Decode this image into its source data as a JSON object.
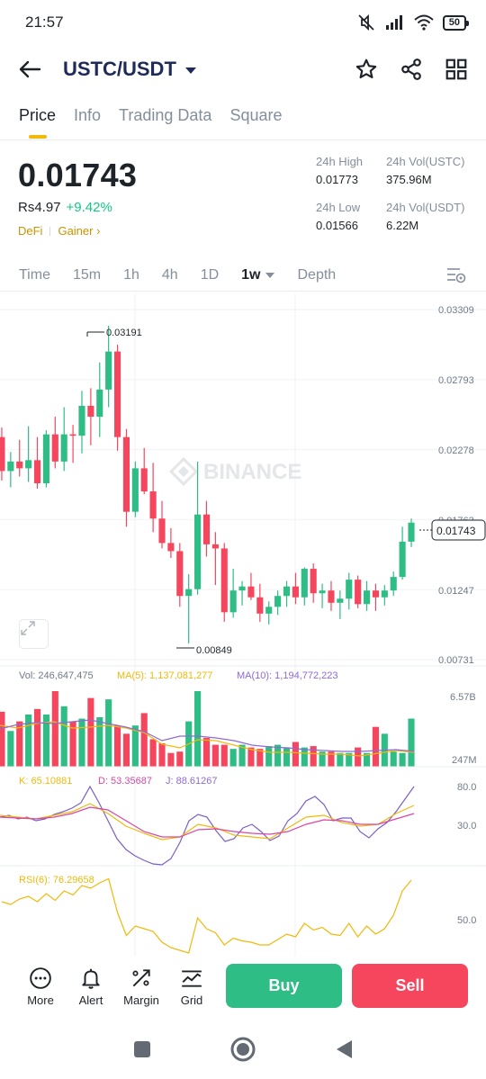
{
  "status": {
    "time": "21:57",
    "battery": "50"
  },
  "header": {
    "pair": "USTC/USDT"
  },
  "tabs": [
    {
      "label": "Price",
      "active": true
    },
    {
      "label": "Info"
    },
    {
      "label": "Trading Data"
    },
    {
      "label": "Square"
    }
  ],
  "ticker": {
    "last_price": "0.01743",
    "fiat_price": "Rs4.97",
    "change": "+9.42%",
    "tag1": "DeFi",
    "tag2": "Gainer",
    "high_label": "24h High",
    "high": "0.01773",
    "low_label": "24h Low",
    "low": "0.01566",
    "vol_base_label": "24h Vol(USTC)",
    "vol_base": "375.96M",
    "vol_quote_label": "24h Vol(USDT)",
    "vol_quote": "6.22M"
  },
  "intervals": [
    {
      "label": "Time"
    },
    {
      "label": "15m"
    },
    {
      "label": "1h"
    },
    {
      "label": "4h"
    },
    {
      "label": "1D"
    },
    {
      "label": "1w",
      "active": true
    },
    {
      "label": "Depth"
    }
  ],
  "chart_labels": {
    "watermark": "BINANCE",
    "y_ticks": [
      "0.03309",
      "0.02793",
      "0.02278",
      "0.01763",
      "0.01247",
      "0.00731"
    ],
    "high_marker": "0.03191",
    "low_marker": "0.00849",
    "current_price": "0.01743",
    "vol_text": "Vol: 246,647,475",
    "ma5_text": "MA(5): 1,137,081,277",
    "ma10_text": "MA(10): 1,194,772,223",
    "vol_ticks": [
      "6.57B",
      "247M"
    ],
    "kdj_k": "K: 65.10881",
    "kdj_d": "D: 53.35687",
    "kdj_j": "J: 88.61267",
    "kdj_ticks": [
      "80.0",
      "30.0"
    ],
    "rsi_text": "RSI(6): 76.29658",
    "rsi_tick": "50.0"
  },
  "colors": {
    "up": "#2ebd85",
    "down": "#f6465d",
    "ma5": "#f0b90b",
    "ma10": "#8e6ad6",
    "kdj_k": "#7b5fc7",
    "kdj_d": "#f0b90b",
    "kdj_j": "#d946a6"
  },
  "chart_data": {
    "type": "candlestick",
    "y_axis_ticks": [
      0.03309,
      0.02793,
      0.02278,
      0.01763,
      0.01247,
      0.00731
    ],
    "ohlc": [
      [
        0.0237,
        0.0244,
        0.0205,
        0.0212
      ],
      [
        0.0212,
        0.0226,
        0.02,
        0.0219
      ],
      [
        0.0219,
        0.0235,
        0.0208,
        0.0214
      ],
      [
        0.0214,
        0.0245,
        0.0204,
        0.022
      ],
      [
        0.022,
        0.0237,
        0.0199,
        0.0203
      ],
      [
        0.0203,
        0.0242,
        0.02,
        0.0239
      ],
      [
        0.0239,
        0.0252,
        0.0214,
        0.0219
      ],
      [
        0.0219,
        0.0259,
        0.0212,
        0.0239
      ],
      [
        0.0239,
        0.0246,
        0.0218,
        0.0238
      ],
      [
        0.0238,
        0.0271,
        0.0225,
        0.026
      ],
      [
        0.026,
        0.0273,
        0.0231,
        0.0252
      ],
      [
        0.0252,
        0.0292,
        0.0237,
        0.0272
      ],
      [
        0.0272,
        0.0319,
        0.0259,
        0.03
      ],
      [
        0.03,
        0.0305,
        0.0227,
        0.0237
      ],
      [
        0.0237,
        0.0243,
        0.0171,
        0.0182
      ],
      [
        0.0182,
        0.0219,
        0.0178,
        0.0214
      ],
      [
        0.0214,
        0.0229,
        0.0195,
        0.0197
      ],
      [
        0.0197,
        0.0218,
        0.0167,
        0.0177
      ],
      [
        0.0177,
        0.019,
        0.0155,
        0.0159
      ],
      [
        0.0159,
        0.017,
        0.0148,
        0.0153
      ],
      [
        0.0153,
        0.0159,
        0.0112,
        0.012
      ],
      [
        0.012,
        0.0136,
        0.0085,
        0.0125
      ],
      [
        0.0125,
        0.0219,
        0.0121,
        0.018
      ],
      [
        0.018,
        0.019,
        0.0149,
        0.0158
      ],
      [
        0.0158,
        0.0167,
        0.0128,
        0.0155
      ],
      [
        0.0155,
        0.0159,
        0.0101,
        0.0108
      ],
      [
        0.0108,
        0.014,
        0.0104,
        0.0124
      ],
      [
        0.0124,
        0.0131,
        0.0113,
        0.0127
      ],
      [
        0.0127,
        0.0137,
        0.0117,
        0.0119
      ],
      [
        0.0119,
        0.0129,
        0.0101,
        0.0107
      ],
      [
        0.0107,
        0.0116,
        0.0099,
        0.0112
      ],
      [
        0.0112,
        0.0124,
        0.0106,
        0.012
      ],
      [
        0.012,
        0.0131,
        0.0112,
        0.0127
      ],
      [
        0.0127,
        0.0137,
        0.0114,
        0.0119
      ],
      [
        0.0119,
        0.0141,
        0.0113,
        0.014
      ],
      [
        0.014,
        0.0144,
        0.0115,
        0.0122
      ],
      [
        0.0122,
        0.0129,
        0.0111,
        0.0124
      ],
      [
        0.0124,
        0.0131,
        0.0109,
        0.0115
      ],
      [
        0.0115,
        0.0124,
        0.0103,
        0.0118
      ],
      [
        0.0118,
        0.0137,
        0.011,
        0.0132
      ],
      [
        0.0132,
        0.0135,
        0.0111,
        0.0114
      ],
      [
        0.0114,
        0.0131,
        0.0109,
        0.0124
      ],
      [
        0.0124,
        0.0129,
        0.0109,
        0.0119
      ],
      [
        0.0119,
        0.0128,
        0.0113,
        0.0124
      ],
      [
        0.0124,
        0.0138,
        0.012,
        0.0134
      ],
      [
        0.0134,
        0.0171,
        0.0132,
        0.016
      ],
      [
        0.016,
        0.0177,
        0.0156,
        0.0174
      ]
    ],
    "volume_axis": [
      247000000,
      6570000000
    ],
    "volume_values": [
      4.0,
      2.6,
      3.3,
      3.8,
      4.2,
      3.8,
      5.5,
      4.4,
      3.3,
      3.5,
      5.0,
      3.6,
      4.9,
      3.0,
      2.4,
      3.0,
      3.9,
      2.0,
      1.7,
      1.0,
      1.1,
      3.3,
      5.5,
      2.1,
      1.6,
      1.6,
      1.3,
      1.6,
      1.4,
      1.3,
      1.5,
      1.6,
      1.4,
      1.8,
      1.4,
      1.5,
      1.1,
      1.1,
      1.0,
      1.0,
      1.4,
      1.0,
      2.9,
      2.4,
      1.1,
      1.0,
      3.5
    ],
    "rsi_values": [
      60,
      58,
      62,
      64,
      60,
      66,
      61,
      68,
      65,
      72,
      70,
      74,
      77,
      52,
      35,
      42,
      40,
      38,
      30,
      26,
      24,
      22,
      48,
      40,
      37,
      28,
      33,
      31,
      30,
      28,
      28,
      32,
      36,
      34,
      44,
      39,
      41,
      36,
      35,
      44,
      34,
      42,
      36,
      40,
      50,
      68,
      76
    ]
  }
}
